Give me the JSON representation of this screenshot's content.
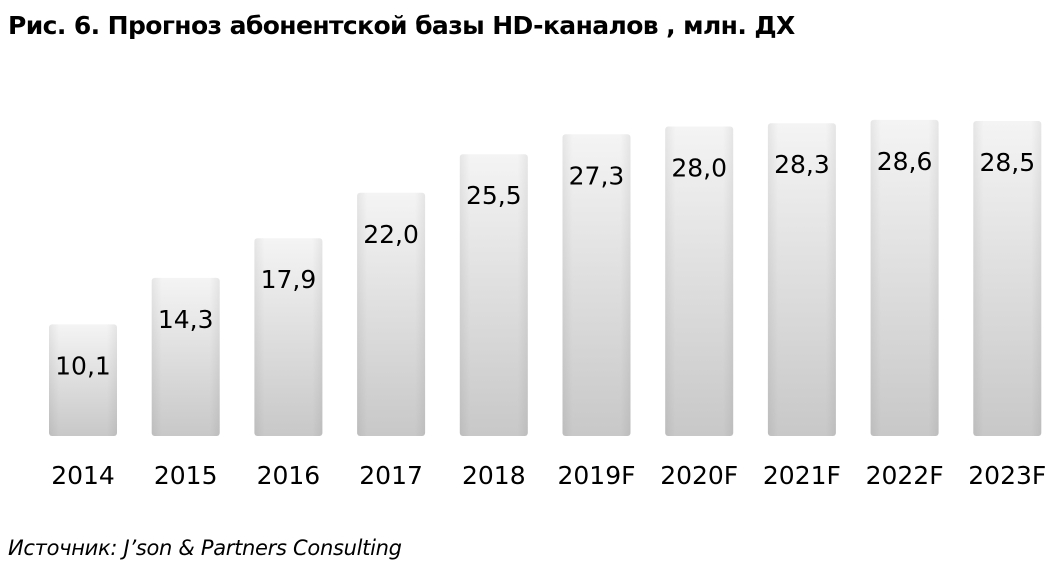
{
  "title": "Рис. 6. Прогноз абонентской базы HD-каналов , млн. ДХ",
  "source": "Источник: J’son & Partners Consulting",
  "chart_data": {
    "type": "bar",
    "title": "Рис. 6. Прогноз абонентской базы HD-каналов , млн. ДХ",
    "categories": [
      "2014",
      "2015",
      "2016",
      "2017",
      "2018",
      "2019F",
      "2020F",
      "2021F",
      "2022F",
      "2023F"
    ],
    "values": [
      10.1,
      14.3,
      17.9,
      22.0,
      25.5,
      27.3,
      28.0,
      28.3,
      28.6,
      28.5
    ],
    "data_labels": [
      "10,1",
      "14,3",
      "17,9",
      "22,0",
      "25,5",
      "27,3",
      "28,0",
      "28,3",
      "28,6",
      "28,5"
    ],
    "xlabel": "",
    "ylabel": "",
    "ylim": [
      0,
      30
    ],
    "grid": false,
    "legend": "none",
    "bar_color_top": "#f4f4f4",
    "bar_color_bottom": "#c8c8c8"
  }
}
